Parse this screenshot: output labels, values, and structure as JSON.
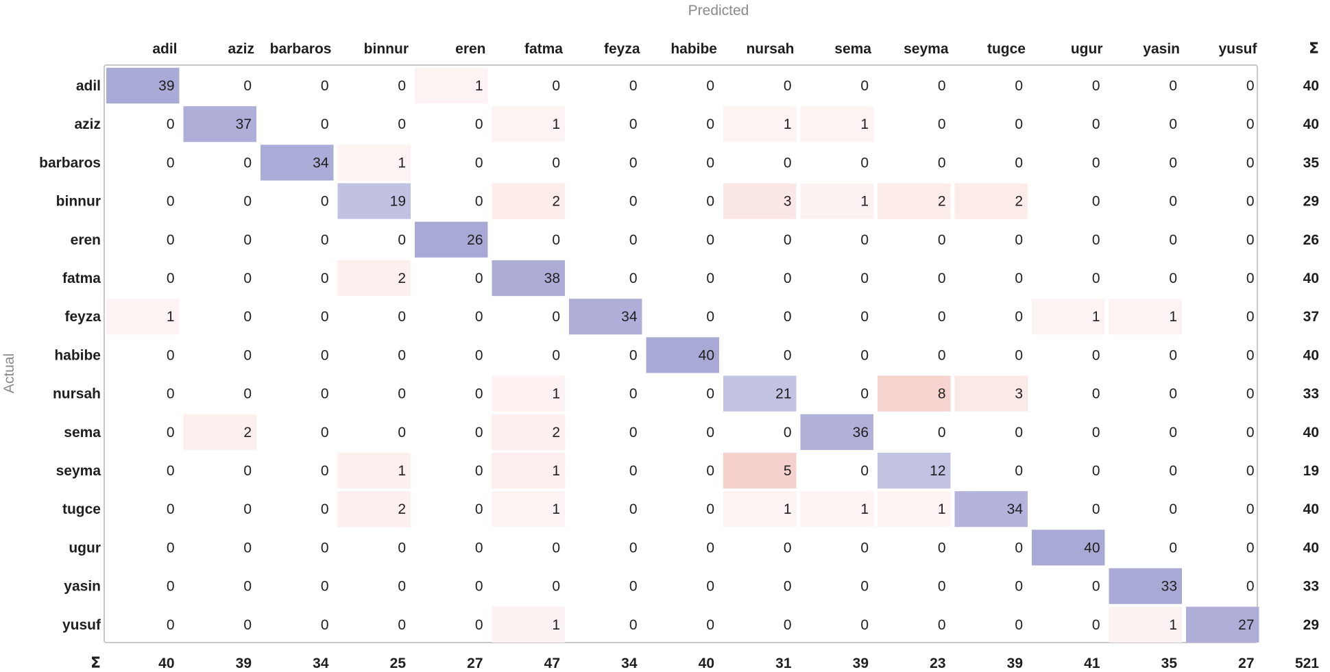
{
  "chart_data": {
    "type": "heatmap",
    "title": "Predicted",
    "ylabel": "Actual",
    "sum_symbol": "Σ",
    "columns": [
      "adil",
      "aziz",
      "barbaros",
      "binnur",
      "eren",
      "fatma",
      "feyza",
      "habibe",
      "nursah",
      "sema",
      "seyma",
      "tugce",
      "ugur",
      "yasin",
      "yusuf"
    ],
    "rows": [
      "adil",
      "aziz",
      "barbaros",
      "binnur",
      "eren",
      "fatma",
      "feyza",
      "habibe",
      "nursah",
      "sema",
      "seyma",
      "tugce",
      "ugur",
      "yasin",
      "yusuf"
    ],
    "matrix": [
      [
        39,
        0,
        0,
        0,
        1,
        0,
        0,
        0,
        0,
        0,
        0,
        0,
        0,
        0,
        0
      ],
      [
        0,
        37,
        0,
        0,
        0,
        1,
        0,
        0,
        1,
        1,
        0,
        0,
        0,
        0,
        0
      ],
      [
        0,
        0,
        34,
        1,
        0,
        0,
        0,
        0,
        0,
        0,
        0,
        0,
        0,
        0,
        0
      ],
      [
        0,
        0,
        0,
        19,
        0,
        2,
        0,
        0,
        3,
        1,
        2,
        2,
        0,
        0,
        0
      ],
      [
        0,
        0,
        0,
        0,
        26,
        0,
        0,
        0,
        0,
        0,
        0,
        0,
        0,
        0,
        0
      ],
      [
        0,
        0,
        0,
        2,
        0,
        38,
        0,
        0,
        0,
        0,
        0,
        0,
        0,
        0,
        0
      ],
      [
        1,
        0,
        0,
        0,
        0,
        0,
        34,
        0,
        0,
        0,
        0,
        0,
        1,
        1,
        0
      ],
      [
        0,
        0,
        0,
        0,
        0,
        0,
        0,
        40,
        0,
        0,
        0,
        0,
        0,
        0,
        0
      ],
      [
        0,
        0,
        0,
        0,
        0,
        1,
        0,
        0,
        21,
        0,
        8,
        3,
        0,
        0,
        0
      ],
      [
        0,
        2,
        0,
        0,
        0,
        2,
        0,
        0,
        0,
        36,
        0,
        0,
        0,
        0,
        0
      ],
      [
        0,
        0,
        0,
        1,
        0,
        1,
        0,
        0,
        5,
        0,
        12,
        0,
        0,
        0,
        0
      ],
      [
        0,
        0,
        0,
        2,
        0,
        1,
        0,
        0,
        1,
        1,
        1,
        34,
        0,
        0,
        0
      ],
      [
        0,
        0,
        0,
        0,
        0,
        0,
        0,
        0,
        0,
        0,
        0,
        0,
        40,
        0,
        0
      ],
      [
        0,
        0,
        0,
        0,
        0,
        0,
        0,
        0,
        0,
        0,
        0,
        0,
        0,
        33,
        0
      ],
      [
        0,
        0,
        0,
        0,
        0,
        1,
        0,
        0,
        0,
        0,
        0,
        0,
        0,
        1,
        27
      ]
    ],
    "row_sums": [
      40,
      40,
      35,
      29,
      26,
      40,
      37,
      40,
      33,
      40,
      19,
      40,
      40,
      33,
      29
    ],
    "col_sums": [
      40,
      39,
      34,
      25,
      27,
      47,
      34,
      40,
      31,
      39,
      23,
      39,
      41,
      35,
      27
    ],
    "total": 521,
    "colors": {
      "correct": "#8c8cc8",
      "error": "#e05a50",
      "border": "#c8c8c8"
    }
  }
}
